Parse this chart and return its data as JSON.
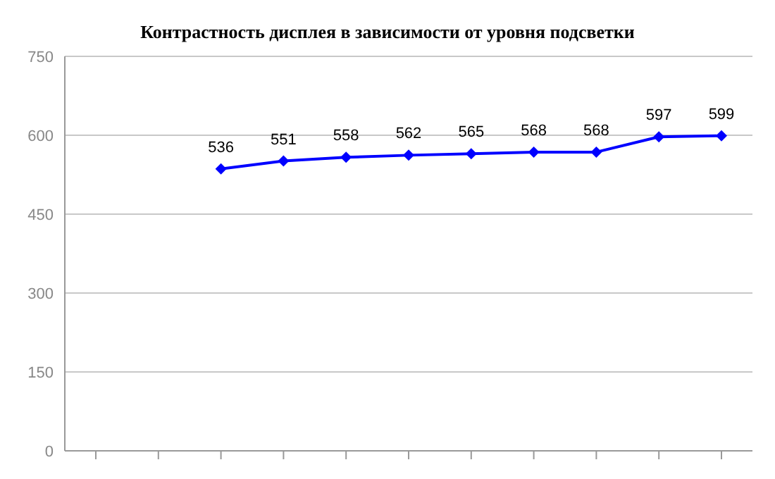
{
  "chart_data": {
    "type": "line",
    "title": "Контрастность дисплея в зависимости от уровня подсветки",
    "categories": [
      null,
      null,
      null,
      null,
      null,
      null,
      null,
      null,
      null,
      null,
      null
    ],
    "series": [
      {
        "color": "#0000ff",
        "values": [
          null,
          null,
          536,
          551,
          558,
          562,
          565,
          568,
          568,
          597,
          599
        ]
      }
    ],
    "ylim": [
      0,
      750
    ],
    "yticks": [
      0,
      150,
      300,
      450,
      600,
      750
    ],
    "grid": "y",
    "marker": "diamond",
    "line_style": "solid",
    "data_labels": true
  }
}
